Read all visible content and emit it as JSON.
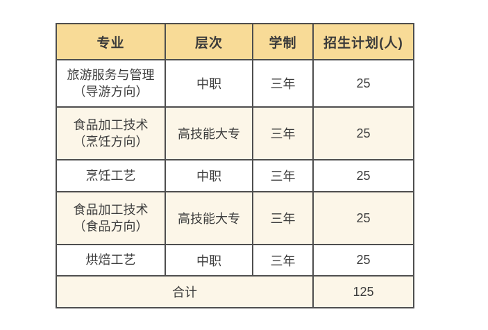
{
  "table": {
    "headers": [
      "专业",
      "层次",
      "学制",
      "招生计划(人)"
    ],
    "rows": [
      {
        "major": "旅游服务与管理\n（导游方向）",
        "level": "中职",
        "duration": "三年",
        "plan": "25"
      },
      {
        "major": "食品加工技术\n（烹饪方向）",
        "level": "高技能大专",
        "duration": "三年",
        "plan": "25"
      },
      {
        "major": "烹饪工艺",
        "level": "中职",
        "duration": "三年",
        "plan": "25"
      },
      {
        "major": "食品加工技术\n（食品方向）",
        "level": "高技能大专",
        "duration": "三年",
        "plan": "25"
      },
      {
        "major": "烘焙工艺",
        "level": "中职",
        "duration": "三年",
        "plan": "25"
      }
    ],
    "total": {
      "label": "合计",
      "value": "125"
    }
  },
  "colors": {
    "page_bg": "#ffffff",
    "header_bg": "#f8db97",
    "stripe_bg": "#fcf6e8",
    "row_bg": "#ffffff",
    "border": "#4e4e4e",
    "text": "#3d3d3d"
  }
}
